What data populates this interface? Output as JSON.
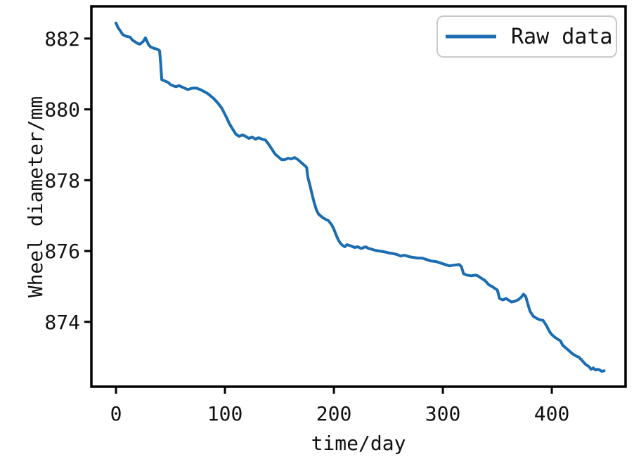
{
  "colors": {
    "line": "#1b6cb0",
    "axis": "#111111",
    "legend_border": "#c9c9c9",
    "background": "#ffffff"
  },
  "chart_data": {
    "type": "line",
    "title": "",
    "xlabel": "time/day",
    "ylabel": "Wheel diameter/mm",
    "xlim": [
      -22.6,
      467.7
    ],
    "ylim": [
      872.17,
      882.91
    ],
    "xticks": [
      0,
      100,
      200,
      300,
      400
    ],
    "yticks": [
      874,
      876,
      878,
      880,
      882
    ],
    "grid": false,
    "legend": {
      "position": "upper right",
      "entries": [
        "Raw data"
      ]
    },
    "series": [
      {
        "name": "Raw data",
        "color": "#1b6cb0",
        "x": [
          0,
          2,
          4,
          6,
          8,
          10,
          13,
          15,
          18,
          20,
          22,
          25,
          27,
          28,
          30,
          32,
          35,
          38,
          40,
          41,
          42,
          45,
          48,
          50,
          53,
          55,
          58,
          60,
          63,
          66,
          70,
          74,
          78,
          81,
          84,
          86,
          90,
          94,
          97,
          100,
          102,
          104,
          106,
          110,
          113,
          116,
          119,
          122,
          125,
          128,
          131,
          134,
          137,
          140,
          143,
          146,
          149,
          152,
          155,
          158,
          161,
          164,
          167,
          170,
          173,
          175,
          176,
          178,
          180,
          182,
          184,
          186,
          189,
          192,
          195,
          198,
          200,
          202,
          204,
          206,
          208,
          210,
          212,
          214,
          216,
          219,
          222,
          225,
          229,
          232,
          235,
          238,
          242,
          246,
          250,
          254,
          258,
          261,
          265,
          269,
          273,
          277,
          281,
          285,
          289,
          294,
          298,
          302,
          306,
          310,
          315,
          317,
          319,
          322,
          326,
          330,
          332,
          336,
          339,
          342,
          345,
          348,
          350,
          352,
          355,
          358,
          361,
          363,
          366,
          369,
          372,
          374,
          376,
          378,
          380,
          383,
          386,
          389,
          392,
          395,
          398,
          400,
          403,
          406,
          408,
          410,
          413,
          416,
          419,
          422,
          425,
          428,
          431,
          434,
          436,
          438,
          440,
          442,
          444,
          446,
          448
        ],
        "y": [
          882.44,
          882.3,
          882.22,
          882.12,
          882.08,
          882.06,
          882.04,
          881.96,
          881.9,
          881.86,
          881.84,
          881.92,
          882.02,
          881.96,
          881.82,
          881.76,
          881.72,
          881.7,
          881.66,
          881.3,
          880.84,
          880.8,
          880.76,
          880.7,
          880.66,
          880.64,
          880.67,
          880.64,
          880.6,
          880.56,
          880.6,
          880.6,
          880.55,
          880.5,
          880.45,
          880.4,
          880.3,
          880.16,
          880.04,
          879.86,
          879.74,
          879.6,
          879.5,
          879.3,
          879.24,
          879.28,
          879.24,
          879.18,
          879.22,
          879.16,
          879.2,
          879.16,
          879.14,
          879.02,
          878.88,
          878.74,
          878.66,
          878.58,
          878.58,
          878.62,
          878.6,
          878.64,
          878.58,
          878.5,
          878.42,
          878.36,
          878.1,
          877.86,
          877.6,
          877.36,
          877.16,
          877.04,
          876.96,
          876.9,
          876.86,
          876.74,
          876.62,
          876.46,
          876.32,
          876.22,
          876.16,
          876.12,
          876.18,
          876.16,
          876.14,
          876.1,
          876.12,
          876.07,
          876.12,
          876.07,
          876.05,
          876.02,
          876.0,
          875.98,
          875.95,
          875.93,
          875.9,
          875.86,
          875.88,
          875.84,
          875.82,
          875.8,
          875.8,
          875.76,
          875.72,
          875.7,
          875.66,
          875.62,
          875.58,
          875.6,
          875.62,
          875.56,
          875.36,
          875.32,
          875.3,
          875.32,
          875.3,
          875.22,
          875.16,
          875.05,
          875.0,
          874.94,
          874.9,
          874.66,
          874.62,
          874.66,
          874.6,
          874.56,
          874.58,
          874.62,
          874.7,
          874.78,
          874.72,
          874.5,
          874.3,
          874.16,
          874.1,
          874.06,
          874.04,
          873.9,
          873.72,
          873.64,
          873.56,
          873.5,
          873.46,
          873.34,
          873.26,
          873.18,
          873.1,
          873.04,
          873.0,
          872.9,
          872.8,
          872.74,
          872.66,
          872.7,
          872.64,
          872.66,
          872.64,
          872.6,
          872.62
        ]
      }
    ]
  }
}
